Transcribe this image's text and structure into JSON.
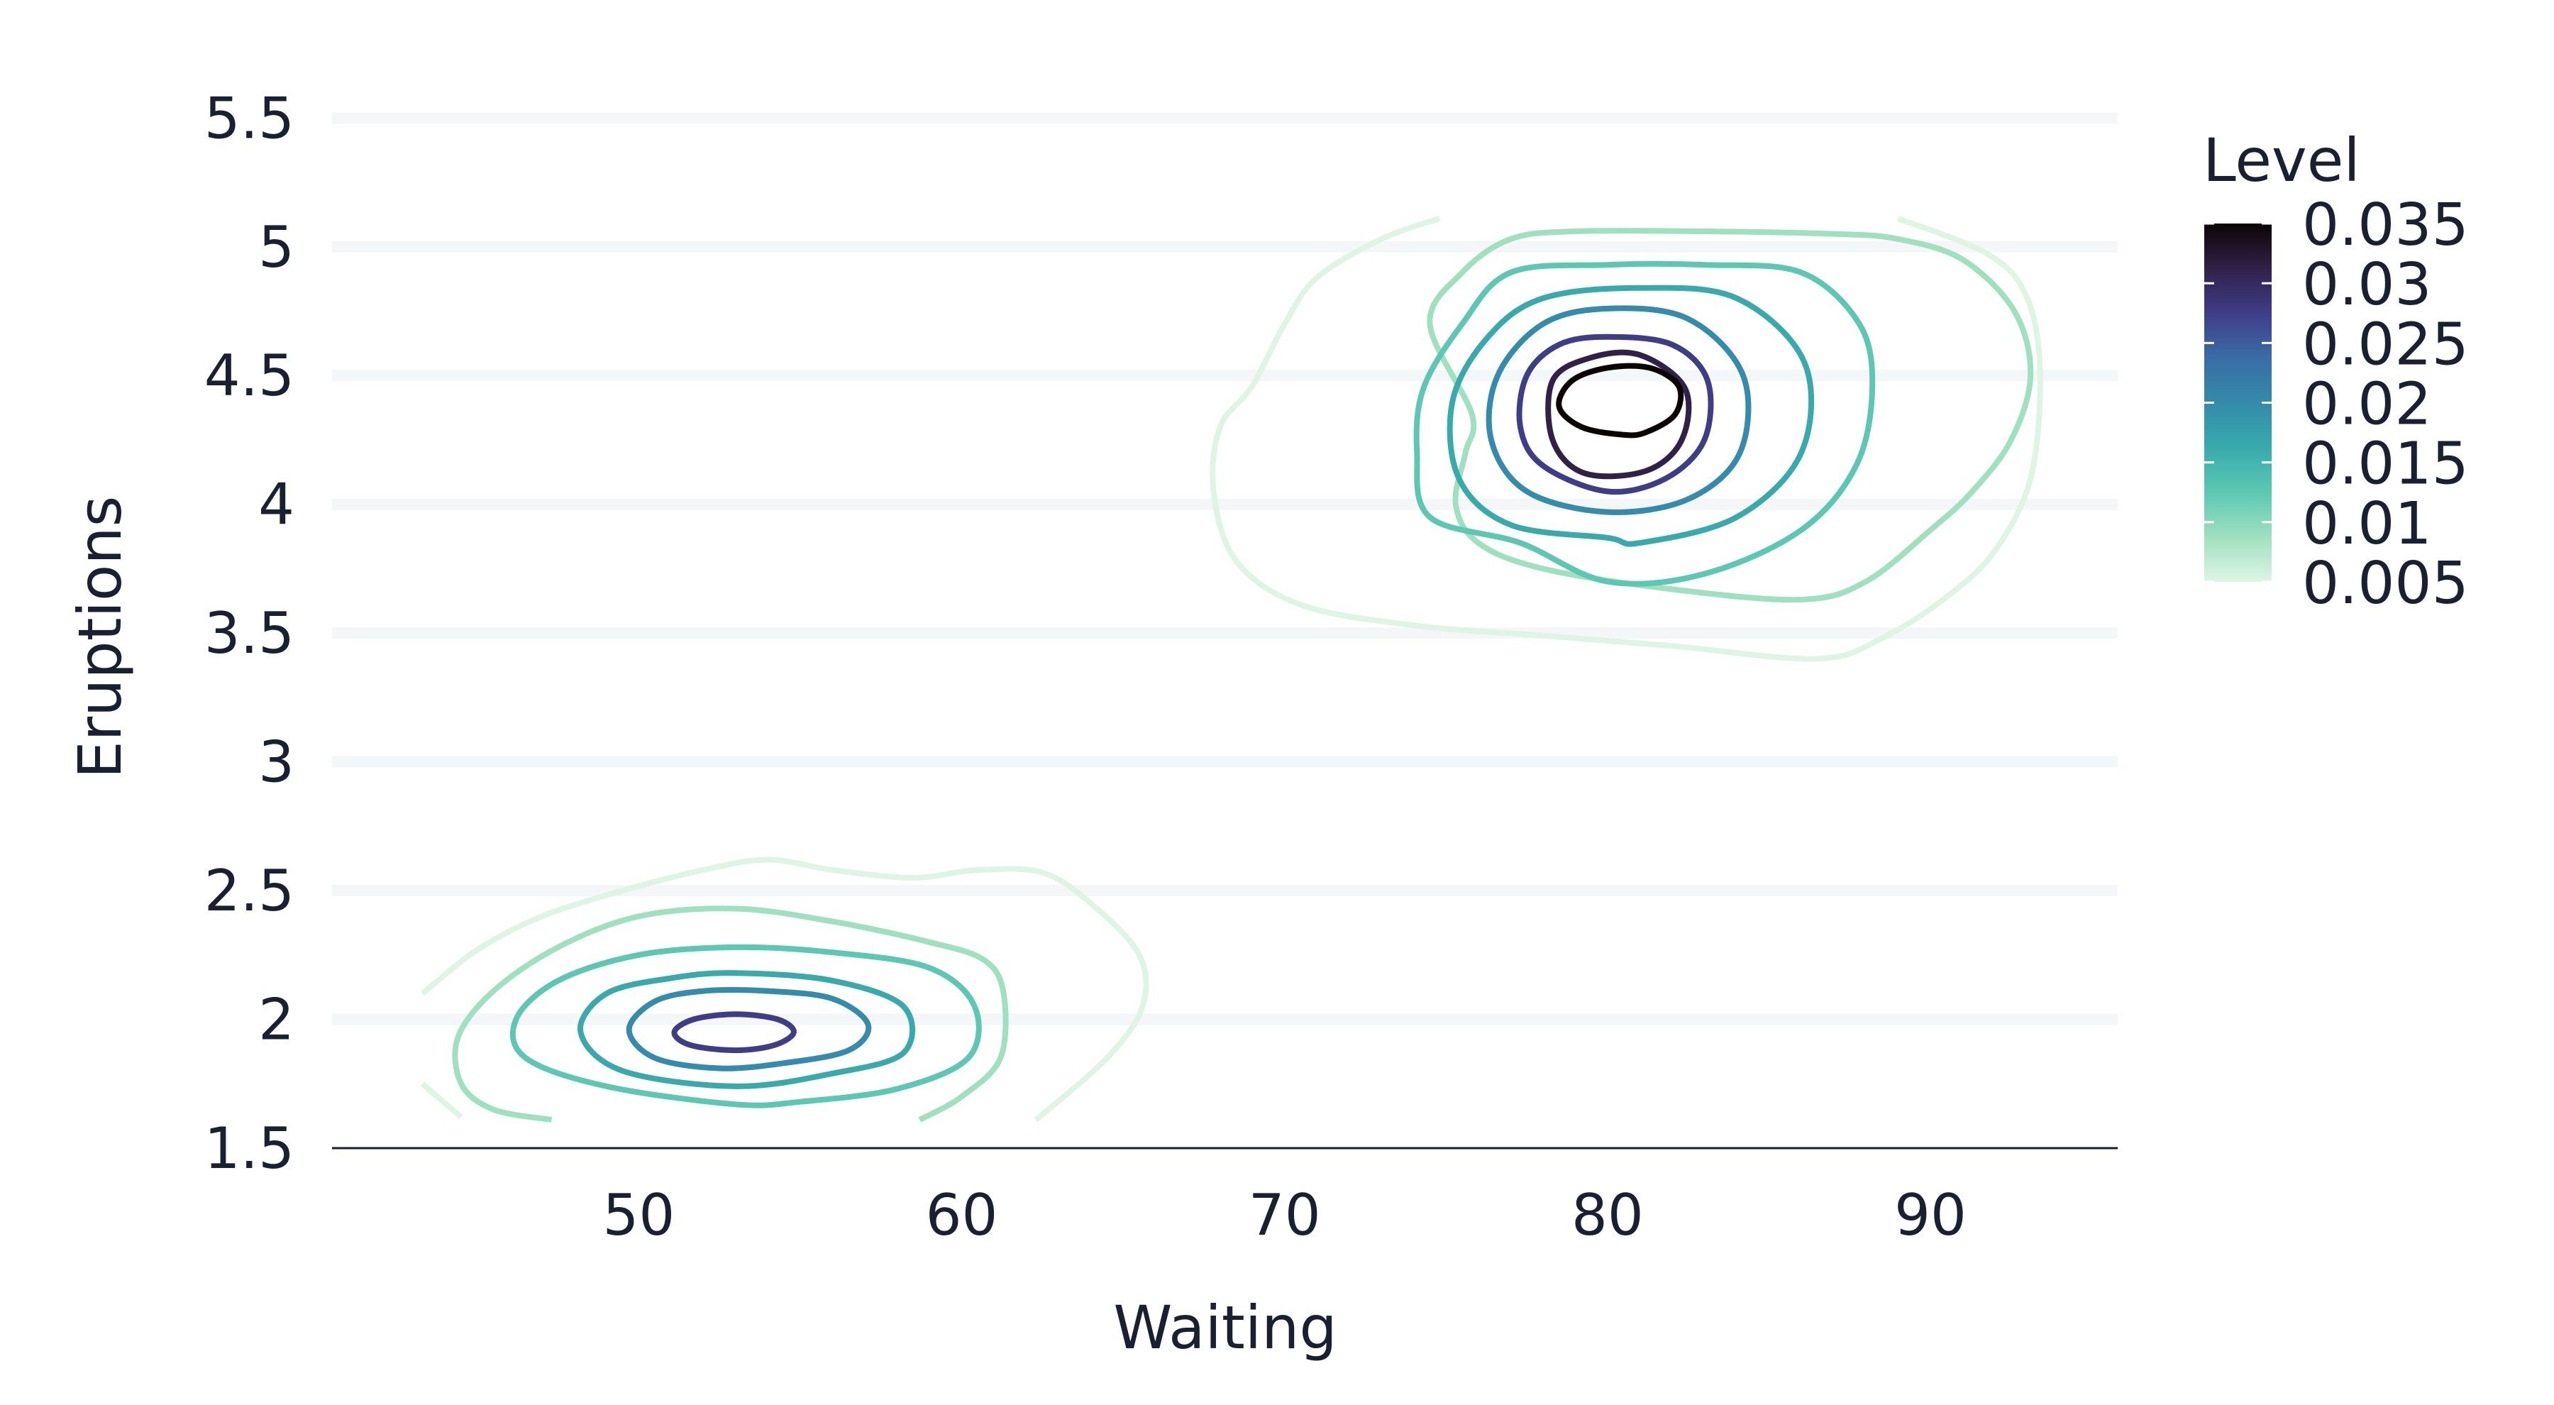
{
  "chart_data": {
    "type": "contour",
    "title": "",
    "xlabel": "Waiting",
    "ylabel": "Eruptions",
    "xlim": [
      40.5,
      95.8
    ],
    "ylim": [
      1.5,
      5.6
    ],
    "x_ticks": [
      50,
      60,
      70,
      80,
      90
    ],
    "y_ticks": [
      1.5,
      2,
      2.5,
      3,
      3.5,
      4,
      4.5,
      5,
      5.5
    ],
    "y_tick_labels": [
      "1.5",
      "2",
      "2.5",
      "3",
      "3.5",
      "4",
      "4.5",
      "5",
      "5.5"
    ],
    "grid": {
      "y": true,
      "x": false,
      "color": "#f4f6f8"
    },
    "legend": {
      "title": "Level",
      "position": "right",
      "range": [
        0.005,
        0.035
      ],
      "ticks": [
        0.005,
        0.01,
        0.015,
        0.02,
        0.025,
        0.03,
        0.035
      ],
      "tick_labels": [
        "0.005",
        "0.01",
        "0.015",
        "0.02",
        "0.025",
        "0.03",
        "0.035"
      ],
      "colormap": [
        "#def5e5",
        "#9fe0c0",
        "#5dc8b2",
        "#38aaac",
        "#348bab",
        "#3b6ca6",
        "#403d88",
        "#2f2148",
        "#0b0405"
      ]
    },
    "contour_levels": [
      {
        "level": 0.005,
        "color": "#def5e5",
        "paths": [
          [
            [
              74.8,
              5.11
            ],
            [
              73,
              5.03
            ],
            [
              71,
              4.88
            ],
            [
              70,
              4.7
            ],
            [
              69,
              4.46
            ],
            [
              68,
              4.3
            ],
            [
              67.8,
              4.05
            ],
            [
              68.5,
              3.78
            ],
            [
              70.5,
              3.61
            ],
            [
              74,
              3.53
            ],
            [
              78,
              3.49
            ],
            [
              82,
              3.45
            ],
            [
              86.5,
              3.4
            ],
            [
              88.5,
              3.48
            ],
            [
              90.5,
              3.64
            ],
            [
              92,
              3.82
            ],
            [
              93.1,
              4.1
            ],
            [
              93.4,
              4.5
            ],
            [
              93,
              4.8
            ],
            [
              91.8,
              4.97
            ],
            [
              89,
              5.11
            ]
          ],
          [
            [
              43.3,
              2.1
            ],
            [
              45,
              2.27
            ],
            [
              47,
              2.4
            ],
            [
              49.5,
              2.5
            ],
            [
              52,
              2.58
            ],
            [
              54,
              2.62
            ],
            [
              56,
              2.58
            ],
            [
              58.5,
              2.55
            ],
            [
              60.5,
              2.58
            ],
            [
              62.5,
              2.57
            ],
            [
              64,
              2.45
            ],
            [
              65.5,
              2.25
            ],
            [
              65.6,
              2.05
            ],
            [
              64.5,
              1.85
            ],
            [
              62.3,
              1.61
            ]
          ],
          [
            [
              43.3,
              1.75
            ],
            [
              44.5,
              1.62
            ]
          ]
        ]
      },
      {
        "level": 0.01,
        "color": "#9fe0c0",
        "paths": [
          [
            [
              75.6,
              4.2
            ],
            [
              75.3,
              4.0
            ],
            [
              76,
              3.85
            ],
            [
              78,
              3.75
            ],
            [
              82,
              3.67
            ],
            [
              86,
              3.63
            ],
            [
              88,
              3.7
            ],
            [
              90,
              3.9
            ],
            [
              91.3,
              4.05
            ],
            [
              92.5,
              4.25
            ],
            [
              93.1,
              4.5
            ],
            [
              92.6,
              4.75
            ],
            [
              91,
              4.95
            ],
            [
              89,
              5.03
            ],
            [
              87,
              5.05
            ],
            [
              83,
              5.06
            ],
            [
              79,
              5.06
            ],
            [
              77,
              5.03
            ],
            [
              75.5,
              4.9
            ],
            [
              74.5,
              4.7
            ],
            [
              75.8,
              4.35
            ],
            [
              75.6,
              4.2
            ]
          ],
          [
            [
              47.3,
              1.61
            ],
            [
              45.5,
              1.65
            ],
            [
              44.5,
              1.75
            ],
            [
              44.4,
              1.93
            ],
            [
              45.5,
              2.11
            ],
            [
              47.5,
              2.28
            ],
            [
              50,
              2.4
            ],
            [
              53,
              2.43
            ],
            [
              56,
              2.38
            ],
            [
              59,
              2.3
            ],
            [
              60.7,
              2.23
            ],
            [
              61.3,
              2.1
            ],
            [
              61.2,
              1.85
            ],
            [
              60,
              1.7
            ],
            [
              58.7,
              1.61
            ]
          ]
        ]
      },
      {
        "level": 0.015,
        "color": "#5dc8b2",
        "paths": [
          [
            [
              77.3,
              3.85
            ],
            [
              74.5,
              3.95
            ],
            [
              74.1,
              4.2
            ],
            [
              74.3,
              4.45
            ],
            [
              75.5,
              4.7
            ],
            [
              77,
              4.9
            ],
            [
              80,
              4.93
            ],
            [
              83,
              4.93
            ],
            [
              86,
              4.9
            ],
            [
              87.8,
              4.7
            ],
            [
              88.2,
              4.45
            ],
            [
              87.7,
              4.15
            ],
            [
              86,
              3.9
            ],
            [
              83,
              3.73
            ],
            [
              80,
              3.7
            ],
            [
              77.3,
              3.85
            ]
          ],
          [
            [
              53,
              1.67
            ],
            [
              49,
              1.74
            ],
            [
              46.5,
              1.85
            ],
            [
              46.2,
              2.0
            ],
            [
              47.5,
              2.15
            ],
            [
              50,
              2.25
            ],
            [
              53,
              2.28
            ],
            [
              56,
              2.26
            ],
            [
              59,
              2.2
            ],
            [
              60.4,
              2.05
            ],
            [
              60.2,
              1.85
            ],
            [
              58,
              1.73
            ],
            [
              55,
              1.68
            ],
            [
              53,
              1.67
            ]
          ]
        ]
      },
      {
        "level": 0.02,
        "color": "#38aaac",
        "paths": [
          [
            [
              80,
              3.87
            ],
            [
              77,
              3.92
            ],
            [
              75.4,
              4.1
            ],
            [
              75.2,
              4.4
            ],
            [
              76.3,
              4.65
            ],
            [
              78,
              4.8
            ],
            [
              81,
              4.84
            ],
            [
              84,
              4.8
            ],
            [
              86.1,
              4.55
            ],
            [
              86,
              4.2
            ],
            [
              84,
              3.95
            ],
            [
              81,
              3.85
            ],
            [
              80,
              3.87
            ]
          ],
          [
            [
              53,
              1.74
            ],
            [
              49.5,
              1.8
            ],
            [
              48.2,
              1.95
            ],
            [
              49,
              2.1
            ],
            [
              51,
              2.16
            ],
            [
              53,
              2.18
            ],
            [
              56,
              2.15
            ],
            [
              58.2,
              2.05
            ],
            [
              58.2,
              1.87
            ],
            [
              56,
              1.79
            ],
            [
              53,
              1.74
            ]
          ]
        ]
      },
      {
        "level": 0.025,
        "color": "#348bab",
        "paths": [
          [
            [
              80,
              3.97
            ],
            [
              77.5,
              4.05
            ],
            [
              76.4,
              4.25
            ],
            [
              76.6,
              4.5
            ],
            [
              78,
              4.7
            ],
            [
              80,
              4.76
            ],
            [
              82.5,
              4.72
            ],
            [
              84.2,
              4.5
            ],
            [
              84.1,
              4.2
            ],
            [
              82.5,
              4.02
            ],
            [
              80,
              3.97
            ]
          ],
          [
            [
              52.5,
              1.81
            ],
            [
              50.5,
              1.85
            ],
            [
              49.7,
              1.96
            ],
            [
              50.5,
              2.07
            ],
            [
              52,
              2.11
            ],
            [
              54,
              2.11
            ],
            [
              56,
              2.08
            ],
            [
              57.1,
              1.98
            ],
            [
              56.5,
              1.88
            ],
            [
              54.5,
              1.83
            ],
            [
              52.5,
              1.81
            ]
          ]
        ]
      },
      {
        "level": 0.03,
        "color": "#403d88",
        "paths": [
          [
            [
              80,
              4.05
            ],
            [
              78,
              4.15
            ],
            [
              77.3,
              4.3
            ],
            [
              77.5,
              4.5
            ],
            [
              78.5,
              4.62
            ],
            [
              80,
              4.65
            ],
            [
              82,
              4.62
            ],
            [
              83.1,
              4.48
            ],
            [
              83,
              4.25
            ],
            [
              81.8,
              4.1
            ],
            [
              80,
              4.05
            ]
          ],
          [
            [
              53,
              1.88
            ],
            [
              51.6,
              1.9
            ],
            [
              51.1,
              1.95
            ],
            [
              51.7,
              2.0
            ],
            [
              53,
              2.02
            ],
            [
              54.3,
              2.0
            ],
            [
              54.8,
              1.95
            ],
            [
              54.2,
              1.9
            ],
            [
              53,
              1.88
            ]
          ]
        ]
      },
      {
        "level": 0.035,
        "color": "#2f2148",
        "paths": [
          [
            [
              79.3,
              4.12
            ],
            [
              78.3,
              4.25
            ],
            [
              78.3,
              4.48
            ],
            [
              79.5,
              4.57
            ],
            [
              81,
              4.58
            ],
            [
              82.4,
              4.45
            ],
            [
              82.3,
              4.25
            ],
            [
              81.2,
              4.13
            ],
            [
              79.3,
              4.12
            ]
          ]
        ]
      },
      {
        "level": 0.04,
        "color": "#0b0405",
        "paths": [
          [
            [
              80.5,
              4.27
            ],
            [
              79.2,
              4.3
            ],
            [
              78.5,
              4.38
            ],
            [
              78.9,
              4.48
            ],
            [
              80,
              4.53
            ],
            [
              81.3,
              4.53
            ],
            [
              82.2,
              4.46
            ],
            [
              82.1,
              4.35
            ],
            [
              81.2,
              4.28
            ],
            [
              80.5,
              4.27
            ]
          ]
        ]
      }
    ]
  }
}
